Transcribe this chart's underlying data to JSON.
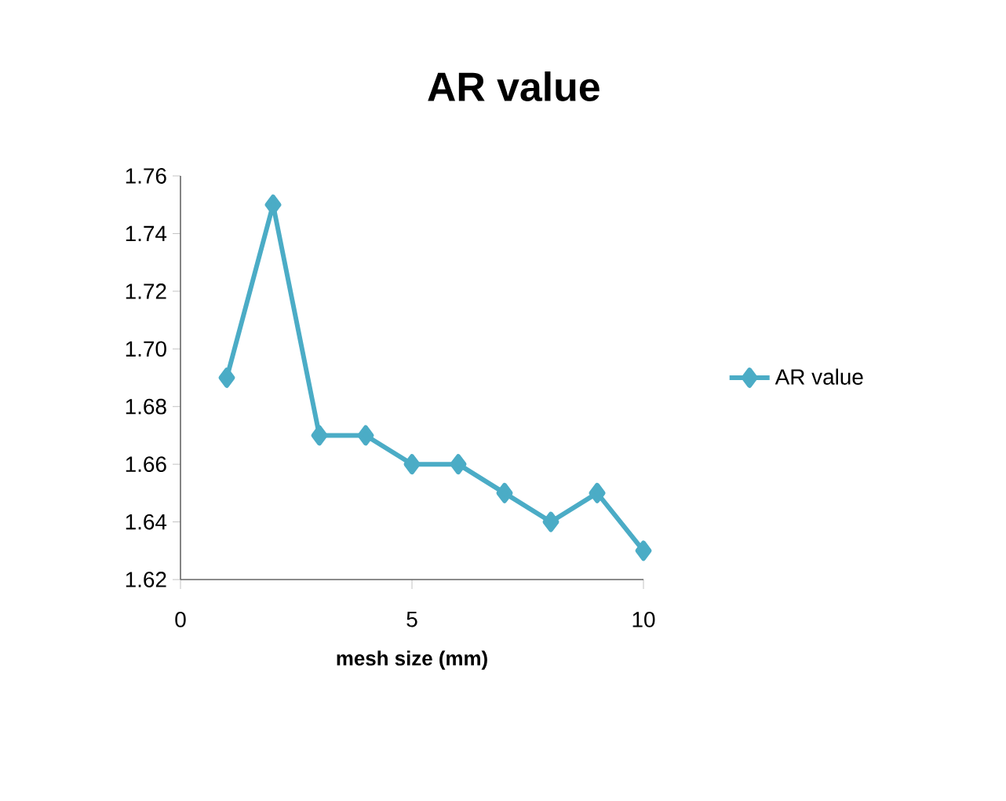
{
  "chart_data": {
    "type": "line",
    "title": "AR value",
    "xlabel": "mesh size (mm)",
    "x": [
      1,
      2,
      3,
      4,
      5,
      6,
      7,
      8,
      9,
      10
    ],
    "series": [
      {
        "name": "AR value",
        "color": "#4bacc6",
        "values": [
          1.69,
          1.75,
          1.67,
          1.67,
          1.66,
          1.66,
          1.65,
          1.64,
          1.65,
          1.63
        ]
      }
    ],
    "xlim": [
      0,
      10
    ],
    "ylim": [
      1.62,
      1.76
    ],
    "xticks": [
      0,
      5,
      10
    ],
    "yticks": [
      {
        "value": 1.62,
        "label": "1.62"
      },
      {
        "value": 1.64,
        "label": "1.64"
      },
      {
        "value": 1.66,
        "label": "1.66"
      },
      {
        "value": 1.68,
        "label": "1.68"
      },
      {
        "value": 1.7,
        "label": "1.70"
      },
      {
        "value": 1.72,
        "label": "1.72"
      },
      {
        "value": 1.74,
        "label": "1.74"
      },
      {
        "value": 1.76,
        "label": "1.76"
      }
    ],
    "legend": "right",
    "marker": "diamond",
    "line_style": "solid"
  }
}
